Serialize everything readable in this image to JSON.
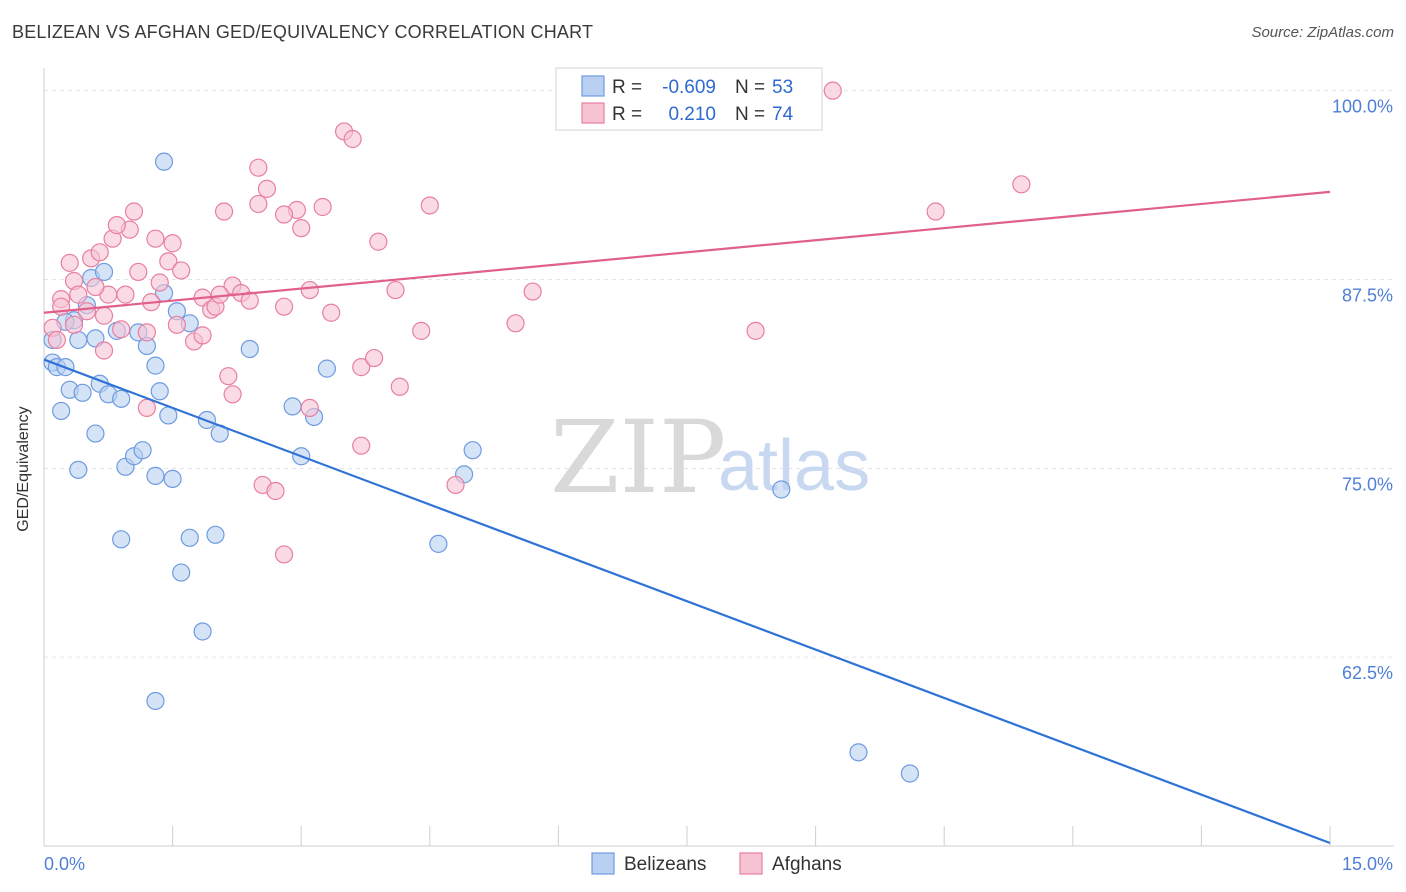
{
  "chart_data": {
    "type": "scatter",
    "title": "BELIZEAN VS AFGHAN GED/EQUIVALENCY CORRELATION CHART",
    "source": "Source: ZipAtlas.com",
    "xlabel": "",
    "ylabel": "GED/Equivalency",
    "xlim": [
      0,
      15
    ],
    "ylim": [
      50,
      101.5
    ],
    "x_tick_labels": [
      "0.0%",
      "15.0%"
    ],
    "y_ticks": [
      {
        "value": 100,
        "label": "100.0%"
      },
      {
        "value": 87.5,
        "label": "87.5%"
      },
      {
        "value": 75,
        "label": "75.0%"
      },
      {
        "value": 62.5,
        "label": "62.5%"
      }
    ],
    "watermark": {
      "zip": "ZIP",
      "atlas": "atlas"
    },
    "legend": {
      "rows": [
        {
          "r_label": "R =",
          "r_value": "-0.609",
          "n_label": "N =",
          "n_value": "53"
        },
        {
          "r_label": "R =",
          "r_value": "0.210",
          "n_label": "N =",
          "n_value": "74"
        }
      ]
    },
    "series": [
      {
        "name": "Belizeans",
        "color": "#6f9be0",
        "fill": "#b9d0f2",
        "trend": {
          "x": [
            0,
            15
          ],
          "y": [
            82.2,
            50.2
          ]
        },
        "points": [
          [
            0.1,
            83.5
          ],
          [
            0.1,
            82
          ],
          [
            0.15,
            81.7
          ],
          [
            0.25,
            81.7
          ],
          [
            0.35,
            84.8
          ],
          [
            0.2,
            78.8
          ],
          [
            0.3,
            80.2
          ],
          [
            0.4,
            83.5
          ],
          [
            0.45,
            80
          ],
          [
            0.55,
            87.6
          ],
          [
            0.6,
            83.6
          ],
          [
            0.5,
            85.8
          ],
          [
            0.65,
            80.6
          ],
          [
            0.75,
            79.9
          ],
          [
            0.85,
            84.1
          ],
          [
            0.7,
            88
          ],
          [
            0.9,
            79.6
          ],
          [
            0.95,
            75.1
          ],
          [
            1.1,
            84
          ],
          [
            1.2,
            83.1
          ],
          [
            1.3,
            81.8
          ],
          [
            1.35,
            80.1
          ],
          [
            1.4,
            86.6
          ],
          [
            1.45,
            78.5
          ],
          [
            1.55,
            85.4
          ],
          [
            1.7,
            84.6
          ],
          [
            1.9,
            78.2
          ],
          [
            2.05,
            77.3
          ],
          [
            2.4,
            82.9
          ],
          [
            2.9,
            79.1
          ],
          [
            3,
            75.8
          ],
          [
            3.15,
            78.4
          ],
          [
            3.3,
            81.6
          ],
          [
            0.6,
            77.3
          ],
          [
            1.5,
            74.3
          ],
          [
            0.4,
            74.9
          ],
          [
            1.05,
            75.8
          ],
          [
            1.15,
            76.2
          ],
          [
            1.3,
            74.5
          ],
          [
            1.7,
            70.4
          ],
          [
            2,
            70.6
          ],
          [
            0.9,
            70.3
          ],
          [
            1.6,
            68.1
          ],
          [
            1.85,
            64.2
          ],
          [
            1.3,
            59.6
          ],
          [
            4.9,
            74.6
          ],
          [
            5.0,
            76.2
          ],
          [
            4.6,
            70
          ],
          [
            8.6,
            73.6
          ],
          [
            9.5,
            56.2
          ],
          [
            10.1,
            54.8
          ],
          [
            1.4,
            95.3
          ],
          [
            0.25,
            84.7
          ]
        ]
      },
      {
        "name": "Afghans",
        "color": "#e87fa0",
        "fill": "#f6c3d3",
        "trend": {
          "x": [
            0,
            15
          ],
          "y": [
            85.3,
            93.3
          ]
        },
        "points": [
          [
            0.1,
            84.3
          ],
          [
            0.15,
            83.5
          ],
          [
            0.2,
            86.2
          ],
          [
            0.3,
            88.6
          ],
          [
            0.35,
            87.4
          ],
          [
            0.4,
            86.5
          ],
          [
            0.5,
            85.4
          ],
          [
            0.55,
            88.9
          ],
          [
            0.65,
            89.3
          ],
          [
            0.7,
            85.1
          ],
          [
            0.75,
            86.5
          ],
          [
            0.8,
            90.2
          ],
          [
            0.9,
            84.2
          ],
          [
            0.95,
            86.5
          ],
          [
            1.0,
            90.8
          ],
          [
            1.05,
            92
          ],
          [
            1.1,
            88
          ],
          [
            1.2,
            84
          ],
          [
            1.25,
            86
          ],
          [
            1.3,
            90.2
          ],
          [
            1.35,
            87.3
          ],
          [
            1.45,
            88.7
          ],
          [
            1.55,
            84.5
          ],
          [
            1.6,
            88.1
          ],
          [
            1.75,
            83.4
          ],
          [
            1.85,
            86.3
          ],
          [
            1.95,
            85.5
          ],
          [
            2.1,
            92
          ],
          [
            2.2,
            87.1
          ],
          [
            2.3,
            86.6
          ],
          [
            2.4,
            86.1
          ],
          [
            2.5,
            94.9
          ],
          [
            2.6,
            93.5
          ],
          [
            2.8,
            85.7
          ],
          [
            2.95,
            92.1
          ],
          [
            3.1,
            86.8
          ],
          [
            3.25,
            92.3
          ],
          [
            3.35,
            85.3
          ],
          [
            3.5,
            97.3
          ],
          [
            3.6,
            96.8
          ],
          [
            3.7,
            81.7
          ],
          [
            3.85,
            82.3
          ],
          [
            3.9,
            90
          ],
          [
            4.1,
            86.8
          ],
          [
            4.15,
            80.4
          ],
          [
            4.4,
            84.1
          ],
          [
            4.5,
            92.4
          ],
          [
            4.8,
            73.9
          ],
          [
            5.5,
            84.6
          ],
          [
            5.7,
            86.7
          ],
          [
            8.3,
            84.1
          ],
          [
            9.2,
            100
          ],
          [
            10.4,
            92
          ],
          [
            11.4,
            93.8
          ],
          [
            2.8,
            69.3
          ],
          [
            2.55,
            73.9
          ],
          [
            2.7,
            73.5
          ],
          [
            2.15,
            81.1
          ],
          [
            2.2,
            79.9
          ],
          [
            1.2,
            79
          ],
          [
            3.7,
            76.5
          ],
          [
            3.1,
            79
          ],
          [
            0.2,
            85.7
          ],
          [
            1.85,
            83.8
          ],
          [
            2.0,
            85.7
          ],
          [
            2.5,
            92.5
          ],
          [
            3.0,
            90.9
          ],
          [
            1.5,
            89.9
          ],
          [
            0.85,
            91.1
          ],
          [
            2.05,
            86.5
          ],
          [
            0.6,
            87
          ],
          [
            0.35,
            84.5
          ],
          [
            0.7,
            82.8
          ],
          [
            2.8,
            91.8
          ]
        ]
      }
    ]
  }
}
